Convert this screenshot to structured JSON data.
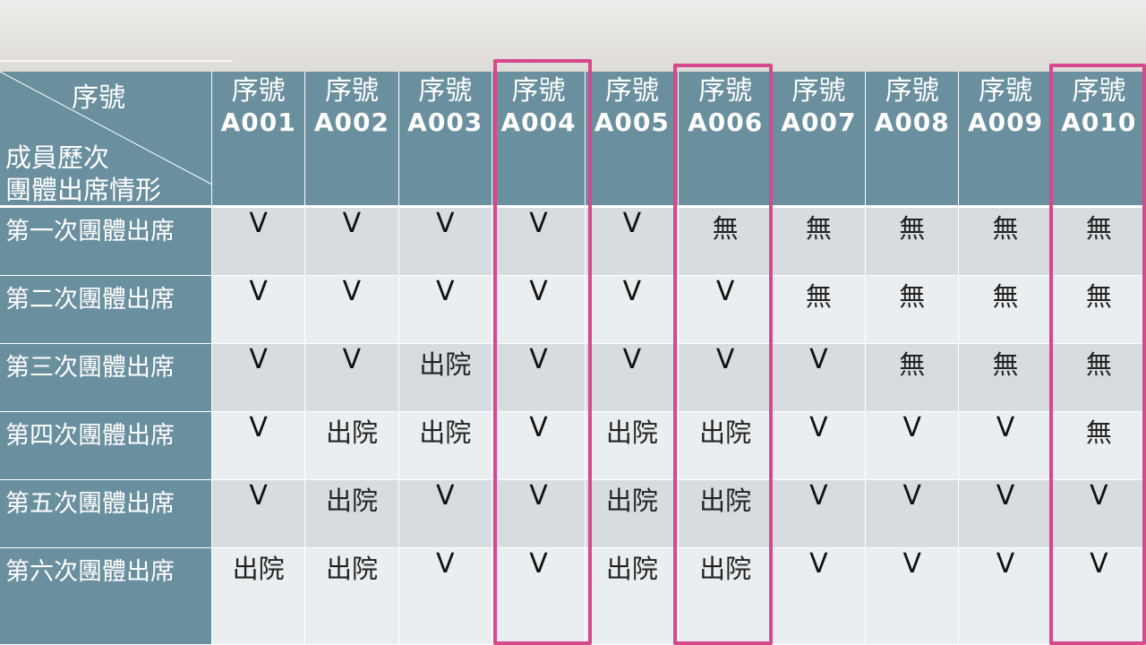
{
  "table": {
    "corner_top": "序號",
    "corner_bottom_line1": "成員歷次",
    "corner_bottom_line2": "團體出席情形",
    "id_label": "序號",
    "members": [
      "A001",
      "A002",
      "A003",
      "A004",
      "A005",
      "A006",
      "A007",
      "A008",
      "A009",
      "A010"
    ],
    "rows": [
      {
        "label": "第一次團體出席",
        "cells": [
          "V",
          "V",
          "V",
          "V",
          "V",
          "無",
          "無",
          "無",
          "無",
          "無"
        ]
      },
      {
        "label": "第二次團體出席",
        "cells": [
          "V",
          "V",
          "V",
          "V",
          "V",
          "V",
          "無",
          "無",
          "無",
          "無"
        ]
      },
      {
        "label": "第三次團體出席",
        "cells": [
          "V",
          "V",
          "出院",
          "V",
          "V",
          "V",
          "V",
          "無",
          "無",
          "無"
        ]
      },
      {
        "label": "第四次團體出席",
        "cells": [
          "V",
          "出院",
          "出院",
          "V",
          "出院",
          "出院",
          "V",
          "V",
          "V",
          "無"
        ]
      },
      {
        "label": "第五次團體出席",
        "cells": [
          "V",
          "出院",
          "V",
          "V",
          "出院",
          "出院",
          "V",
          "V",
          "V",
          "V"
        ]
      },
      {
        "label": "第六次團體出席",
        "cells": [
          "出院",
          "出院",
          "V",
          "V",
          "出院",
          "出院",
          "V",
          "V",
          "V",
          "V"
        ]
      }
    ]
  },
  "highlighted_members": [
    "A004",
    "A006",
    "A010"
  ],
  "colors": {
    "header_bg": "#6a8f9e",
    "row_shade_a": "#d6dcdf",
    "row_shade_b": "#ebeef0",
    "highlight": "#d6498c"
  }
}
